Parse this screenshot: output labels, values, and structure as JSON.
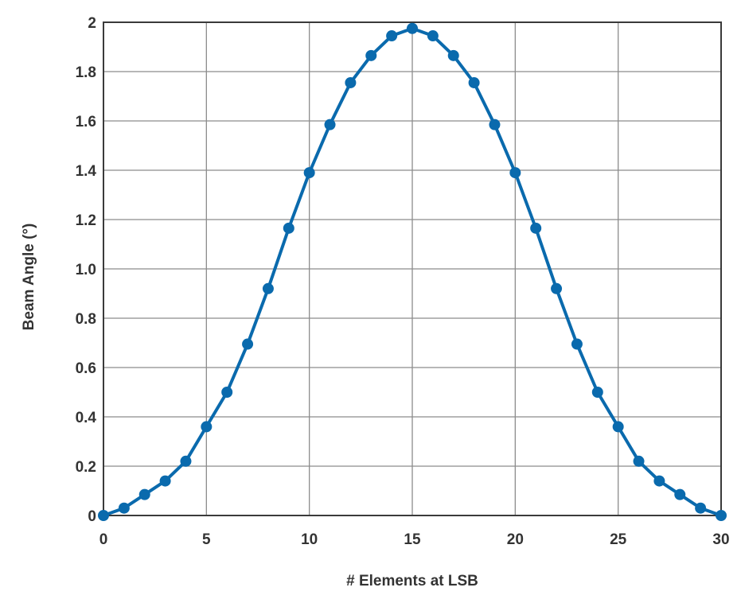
{
  "chart_data": {
    "type": "line",
    "title": "",
    "xlabel": "# Elements at LSB",
    "ylabel": "Beam Angle (°)",
    "xlim": [
      0,
      30
    ],
    "ylim": [
      0,
      2
    ],
    "grid": true,
    "legend": "none",
    "x_ticks": [
      0,
      5,
      10,
      15,
      20,
      25,
      30
    ],
    "x_tick_labels": [
      "0",
      "5",
      "10",
      "15",
      "20",
      "25",
      "30"
    ],
    "y_ticks": [
      0,
      0.2,
      0.4,
      0.6,
      0.8,
      1.0,
      1.2,
      1.4,
      1.6,
      1.8,
      2.0
    ],
    "y_tick_labels": [
      "0",
      "0.2",
      "0.4",
      "0.6",
      "0.8",
      "1.0",
      "1.2",
      "1.4",
      "1.6",
      "1.8",
      "2"
    ],
    "series": [
      {
        "color": "#0a6aad",
        "marker": "circle",
        "x": [
          0,
          1,
          2,
          3,
          4,
          5,
          6,
          7,
          8,
          9,
          10,
          11,
          12,
          13,
          14,
          15,
          16,
          17,
          18,
          19,
          20,
          21,
          22,
          23,
          24,
          25,
          26,
          27,
          28,
          29,
          30
        ],
        "y": [
          0,
          0.03,
          0.085,
          0.14,
          0.22,
          0.36,
          0.5,
          0.695,
          0.92,
          1.165,
          1.39,
          1.585,
          1.755,
          1.865,
          1.945,
          1.975,
          1.945,
          1.865,
          1.755,
          1.585,
          1.39,
          1.165,
          0.92,
          0.695,
          0.5,
          0.36,
          0.22,
          0.14,
          0.085,
          0.03,
          0
        ]
      }
    ]
  }
}
